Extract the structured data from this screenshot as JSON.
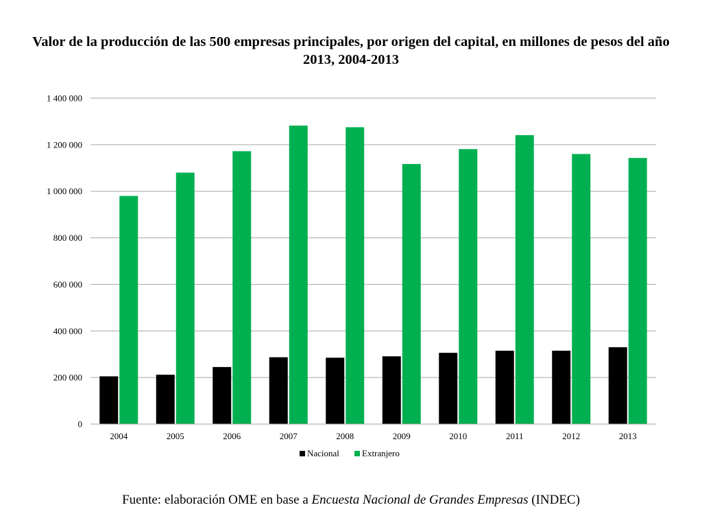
{
  "chart_data": {
    "type": "bar",
    "title": "Valor de la producción de las 500 empresas principales, por origen del capital, en millones de pesos del año 2013, 2004-2013",
    "categories": [
      "2004",
      "2005",
      "2006",
      "2007",
      "2008",
      "2009",
      "2010",
      "2011",
      "2012",
      "2013"
    ],
    "series": [
      {
        "name": "Nacional",
        "color": "#000000",
        "values": [
          205000,
          212000,
          245000,
          287000,
          285000,
          291000,
          306000,
          315000,
          315000,
          330000
        ]
      },
      {
        "name": "Extranjero",
        "color": "#00b050",
        "values": [
          980000,
          1080000,
          1172000,
          1282000,
          1275000,
          1117000,
          1181000,
          1241000,
          1160000,
          1143000
        ]
      }
    ],
    "ylim": [
      0,
      1400000
    ],
    "yticks": [
      0,
      200000,
      400000,
      600000,
      800000,
      1000000,
      1200000,
      1400000
    ],
    "ytick_labels": [
      "0",
      "200 000",
      "400 000",
      "600 000",
      "800 000",
      "1 000 000",
      "1 200 000",
      "1 400 000"
    ],
    "grid": true,
    "legend_position": "bottom"
  },
  "source": {
    "prefix": "Fuente: elaboración OME en base a ",
    "title": "Encuesta Nacional de Grandes Empresas",
    "suffix": " (INDEC)"
  }
}
